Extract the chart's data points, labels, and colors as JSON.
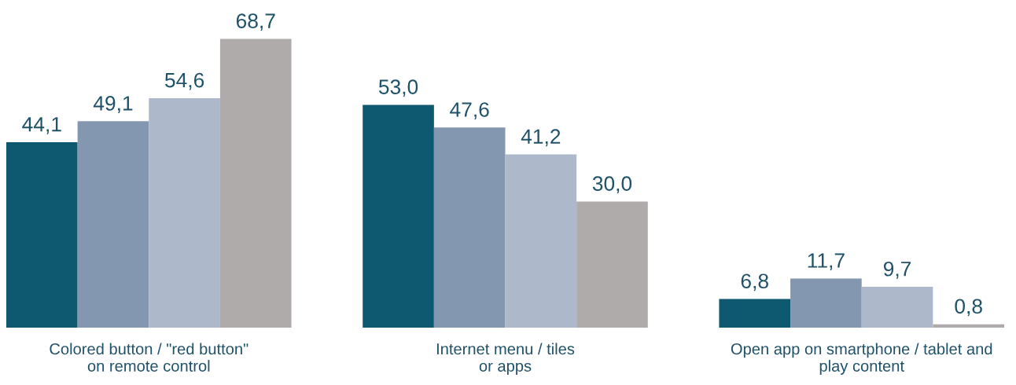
{
  "chart_data": {
    "type": "bar",
    "categories": [
      "Colored button / \"red button\"\non remote control",
      "Internet menu / tiles\nor apps",
      "Open app on smartphone / tablet and\nplay content"
    ],
    "series": [
      {
        "color": "#0e5870",
        "values": [
          44.1,
          53.0,
          6.8
        ],
        "value_labels": [
          "44,1",
          "53,0",
          "6,8"
        ]
      },
      {
        "color": "#8497b0",
        "values": [
          49.1,
          47.6,
          11.7
        ],
        "value_labels": [
          "49,1",
          "47,6",
          "11,7"
        ]
      },
      {
        "color": "#adb9ca",
        "values": [
          54.6,
          41.2,
          9.7
        ],
        "value_labels": [
          "54,6",
          "41,2",
          "9,7"
        ]
      },
      {
        "color": "#afabab",
        "values": [
          68.7,
          30.0,
          0.8
        ],
        "value_labels": [
          "68,7",
          "30,0",
          "0,8"
        ]
      }
    ],
    "tick_labels": "x",
    "grid": false,
    "legend": false
  }
}
